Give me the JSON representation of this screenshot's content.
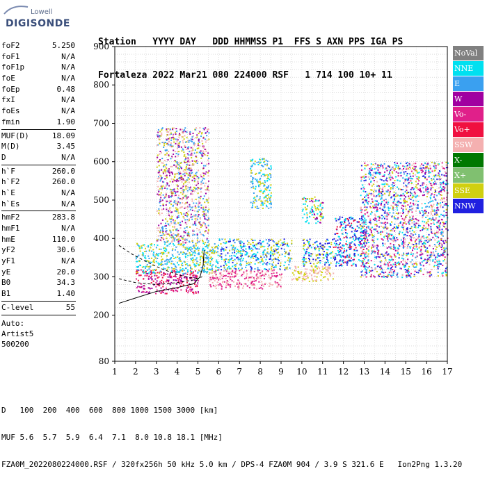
{
  "logo": {
    "brand": "Lowell",
    "product": "DIGISONDE"
  },
  "header": {
    "line1": "Station   YYYY DAY   DDD HHMMSS P1  FFS S AXN PPS IGA PS",
    "line2": "Fortaleza 2022 Mar21 080 224000 RSF   1 714 100 10+ 11"
  },
  "params": {
    "g1": [
      {
        "name": "foF2",
        "value": "5.250"
      },
      {
        "name": "foF1",
        "value": "N/A"
      },
      {
        "name": "foF1p",
        "value": "N/A"
      },
      {
        "name": "foE",
        "value": "N/A"
      },
      {
        "name": "foEp",
        "value": "0.48"
      },
      {
        "name": "fxI",
        "value": "N/A"
      },
      {
        "name": "foEs",
        "value": "N/A"
      },
      {
        "name": "fmin",
        "value": "1.90"
      }
    ],
    "g2": [
      {
        "name": "MUF(D)",
        "value": "18.09"
      },
      {
        "name": "M(D)",
        "value": "3.45"
      },
      {
        "name": "D",
        "value": "N/A"
      }
    ],
    "g3": [
      {
        "name": "h`F",
        "value": "260.0"
      },
      {
        "name": "h`F2",
        "value": "260.0"
      },
      {
        "name": "h`E",
        "value": "N/A"
      },
      {
        "name": "h`Es",
        "value": "N/A"
      }
    ],
    "g4": [
      {
        "name": "hmF2",
        "value": "283.8"
      },
      {
        "name": "hmF1",
        "value": "N/A"
      },
      {
        "name": "hmE",
        "value": "110.0"
      },
      {
        "name": "yF2",
        "value": "30.6"
      },
      {
        "name": "yF1",
        "value": "N/A"
      },
      {
        "name": "yE",
        "value": "20.0"
      },
      {
        "name": "B0",
        "value": "34.3"
      },
      {
        "name": "B1",
        "value": "1.40"
      }
    ],
    "g5": [
      {
        "name": "C-level",
        "value": "55"
      }
    ],
    "auto": [
      "Auto:",
      "Artist5",
      "500200"
    ]
  },
  "legend": [
    {
      "label": "NoVal",
      "color": "#808080"
    },
    {
      "label": "NNE",
      "color": "#00e0f0"
    },
    {
      "label": "E",
      "color": "#3aa0f0"
    },
    {
      "label": "W",
      "color": "#a000a0"
    },
    {
      "label": "Vo-",
      "color": "#e0208a"
    },
    {
      "label": "Vo+",
      "color": "#f01040"
    },
    {
      "label": "SSW",
      "color": "#f4b0b0"
    },
    {
      "label": "X-",
      "color": "#007800"
    },
    {
      "label": "X+",
      "color": "#80c070"
    },
    {
      "label": "SSE",
      "color": "#d0d010"
    },
    {
      "label": "NNW",
      "color": "#2020e0"
    }
  ],
  "chart_data": {
    "type": "scatter",
    "xlabel": "",
    "ylabel": "",
    "xlim": [
      1,
      17
    ],
    "ylim": [
      80,
      900
    ],
    "x_ticks": [
      1,
      2,
      3,
      4,
      5,
      6,
      7,
      8,
      9,
      10,
      11,
      12,
      13,
      14,
      15,
      16,
      17
    ],
    "y_ticks": [
      80,
      200,
      300,
      400,
      500,
      600,
      700,
      800,
      900
    ],
    "y_tick_labels": [
      "80",
      "200",
      "300",
      "400",
      "500",
      "600",
      "700",
      "800",
      "900"
    ],
    "grid": true,
    "curves": [
      {
        "name": "profile",
        "points": [
          [
            1.2,
            231
          ],
          [
            2,
            245
          ],
          [
            3,
            262
          ],
          [
            4,
            272
          ],
          [
            4.8,
            282
          ],
          [
            5.1,
            300
          ],
          [
            5.25,
            330
          ],
          [
            5.3,
            370
          ]
        ]
      },
      {
        "name": "trace-upper",
        "points": [
          [
            1.2,
            382
          ],
          [
            1.8,
            360
          ],
          [
            2.5,
            340
          ],
          [
            3.2,
            322
          ],
          [
            4,
            306
          ],
          [
            4.6,
            298
          ],
          [
            5.0,
            296
          ]
        ]
      },
      {
        "name": "trace-lower",
        "points": [
          [
            1.2,
            295
          ],
          [
            2,
            285
          ],
          [
            3,
            280
          ],
          [
            4,
            285
          ],
          [
            4.8,
            292
          ],
          [
            5.2,
            300
          ]
        ]
      }
    ],
    "echo_regions": [
      {
        "x": [
          2.0,
          5.0
        ],
        "y": [
          258,
          320
        ],
        "colors": [
          "#e0208a",
          "#a000a0",
          "#f01040"
        ]
      },
      {
        "x": [
          2.0,
          6.0
        ],
        "y": [
          310,
          390
        ],
        "colors": [
          "#3aa0f0",
          "#00e0f0",
          "#d0d010"
        ]
      },
      {
        "x": [
          3.0,
          5.5
        ],
        "y": [
          390,
          690
        ],
        "colors": [
          "#d0d010",
          "#a000a0",
          "#f4b0b0",
          "#3aa0f0"
        ]
      },
      {
        "x": [
          5.5,
          9.0
        ],
        "y": [
          270,
          320
        ],
        "colors": [
          "#f4b0b0",
          "#e0208a"
        ]
      },
      {
        "x": [
          6.0,
          9.5
        ],
        "y": [
          320,
          400
        ],
        "colors": [
          "#d0d010",
          "#3aa0f0",
          "#00e0f0",
          "#2020e0"
        ]
      },
      {
        "x": [
          7.5,
          8.5
        ],
        "y": [
          480,
          610
        ],
        "colors": [
          "#00e0f0",
          "#3aa0f0",
          "#d0d010"
        ]
      },
      {
        "x": [
          9.5,
          11.5
        ],
        "y": [
          290,
          330
        ],
        "colors": [
          "#f4b0b0",
          "#d0d010"
        ]
      },
      {
        "x": [
          10.0,
          11.5
        ],
        "y": [
          330,
          400
        ],
        "colors": [
          "#2020e0",
          "#d0d010",
          "#00e0f0"
        ]
      },
      {
        "x": [
          10.0,
          11.0
        ],
        "y": [
          440,
          510
        ],
        "colors": [
          "#00e0f0",
          "#d0d010",
          "#a000a0"
        ]
      },
      {
        "x": [
          11.5,
          13.0
        ],
        "y": [
          330,
          460
        ],
        "colors": [
          "#00e0f0",
          "#f01040",
          "#2020e0"
        ]
      },
      {
        "x": [
          12.8,
          17.0
        ],
        "y": [
          300,
          600
        ],
        "colors": [
          "#2020e0",
          "#a000a0",
          "#e0208a",
          "#00e0f0",
          "#d0d010",
          "#f4b0b0",
          "#3aa0f0"
        ]
      }
    ]
  },
  "footer": {
    "d_label": "D",
    "d_values": "100  200  400  600  800 1000 1500 3000 [km]",
    "muf_label": "MUF",
    "muf_values": "5.6  5.7  5.9  6.4  7.1  8.0 10.8 18.1 [MHz]",
    "file_line": "FZA0M_2022080224000.RSF / 320fx256h 50 kHz 5.0 km / DPS-4 FZA0M 904 / 3.9 S 321.6 E   Ion2Png 1.3.20"
  }
}
